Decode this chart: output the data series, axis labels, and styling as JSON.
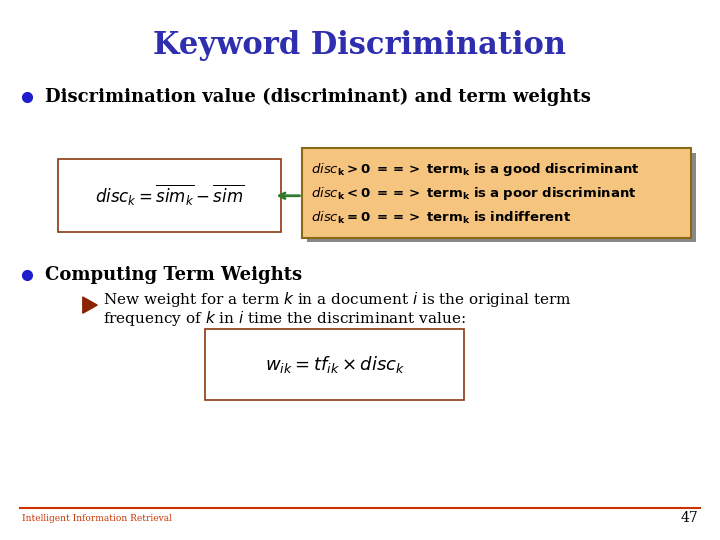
{
  "title": "Keyword Discrimination",
  "title_color": "#2E2EAE",
  "title_fontsize": 22,
  "bg_color": "#FFFFFF",
  "bullet1_text": "Discrimination value (discriminant) and term weights",
  "bullet1_fontsize": 13,
  "bullet_dot_color": "#1E1ECD",
  "callout_bg": "#F5C580",
  "callout_border": "#8B6914",
  "callout_shadow": "#888888",
  "callout_text_color": "#000000",
  "callout_fontsize": 9.5,
  "arrow_color": "#2E7B2E",
  "formula_border": "#8B3A10",
  "formula_bg": "#FFFFFF",
  "bullet2_text": "Computing Term Weights",
  "bullet2_fontsize": 13,
  "sub_bullet_color": "#8B2200",
  "sub_text_fontsize": 11,
  "footer_text": "Intelligent Information Retrieval",
  "footer_page": "47",
  "footer_color": "#CC3300",
  "footer_line_color": "#CC3300",
  "footer_fontsize": 6.5,
  "page_num_fontsize": 10
}
